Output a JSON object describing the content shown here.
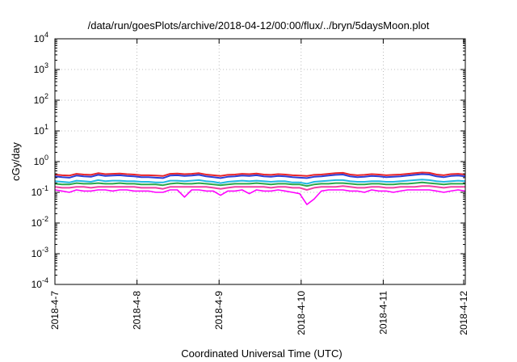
{
  "chart_data": {
    "type": "line",
    "title": "/data/run/goesPlots/archive/2018-04-12/00:00/flux/../bryn/5daysMoon.plot",
    "xlabel": "Coordinated Universal Time (UTC)",
    "ylabel": "cGy/day",
    "yscale": "log",
    "ylim": [
      0.0001,
      10000
    ],
    "xlim": [
      "2018-4-7",
      "2018-4-12"
    ],
    "grid": true,
    "y_ticks": [
      {
        "base": "10",
        "exp": "-4"
      },
      {
        "base": "10",
        "exp": "-3"
      },
      {
        "base": "10",
        "exp": "-2"
      },
      {
        "base": "10",
        "exp": "-1"
      },
      {
        "base": "10",
        "exp": "0"
      },
      {
        "base": "10",
        "exp": "1"
      },
      {
        "base": "10",
        "exp": "2"
      },
      {
        "base": "10",
        "exp": "3"
      },
      {
        "base": "10",
        "exp": "4"
      }
    ],
    "x_ticks": [
      "2018-4-7",
      "2018-4-8",
      "2018-4-9",
      "2018-4-10",
      "2018-4-11",
      "2018-4-12"
    ],
    "series": [
      {
        "color": "#e8242b",
        "values": [
          0.38,
          0.36,
          0.35,
          0.4,
          0.38,
          0.37,
          0.42,
          0.39,
          0.4,
          0.41,
          0.39,
          0.38,
          0.36,
          0.36,
          0.35,
          0.34,
          0.4,
          0.41,
          0.39,
          0.4,
          0.42,
          0.38,
          0.36,
          0.34,
          0.37,
          0.38,
          0.4,
          0.39,
          0.41,
          0.38,
          0.37,
          0.39,
          0.38,
          0.36,
          0.35,
          0.34,
          0.37,
          0.38,
          0.4,
          0.42,
          0.43,
          0.38,
          0.36,
          0.37,
          0.39,
          0.38,
          0.36,
          0.37,
          0.38,
          0.4,
          0.42,
          0.44,
          0.43,
          0.38,
          0.36,
          0.39,
          0.4,
          0.38
        ]
      },
      {
        "color": "#2a3fd8",
        "values": [
          0.33,
          0.31,
          0.3,
          0.35,
          0.33,
          0.32,
          0.37,
          0.34,
          0.35,
          0.36,
          0.34,
          0.33,
          0.31,
          0.31,
          0.3,
          0.29,
          0.35,
          0.36,
          0.34,
          0.35,
          0.37,
          0.33,
          0.31,
          0.29,
          0.32,
          0.33,
          0.35,
          0.34,
          0.36,
          0.33,
          0.32,
          0.34,
          0.33,
          0.31,
          0.3,
          0.29,
          0.32,
          0.33,
          0.35,
          0.37,
          0.38,
          0.33,
          0.31,
          0.32,
          0.34,
          0.33,
          0.31,
          0.32,
          0.33,
          0.35,
          0.37,
          0.39,
          0.38,
          0.33,
          0.31,
          0.34,
          0.35,
          0.33
        ]
      },
      {
        "color": "#23b7e5",
        "values": [
          0.23,
          0.22,
          0.21,
          0.24,
          0.23,
          0.22,
          0.25,
          0.23,
          0.24,
          0.24,
          0.23,
          0.23,
          0.22,
          0.22,
          0.21,
          0.21,
          0.24,
          0.24,
          0.23,
          0.24,
          0.25,
          0.23,
          0.22,
          0.2,
          0.22,
          0.23,
          0.24,
          0.23,
          0.24,
          0.23,
          0.22,
          0.23,
          0.23,
          0.21,
          0.21,
          0.19,
          0.22,
          0.23,
          0.24,
          0.25,
          0.25,
          0.23,
          0.22,
          0.22,
          0.23,
          0.23,
          0.22,
          0.22,
          0.23,
          0.24,
          0.25,
          0.26,
          0.25,
          0.23,
          0.22,
          0.23,
          0.24,
          0.23
        ]
      },
      {
        "color": "#2aa84a",
        "values": [
          0.19,
          0.18,
          0.18,
          0.2,
          0.19,
          0.19,
          0.2,
          0.19,
          0.19,
          0.2,
          0.19,
          0.19,
          0.18,
          0.18,
          0.18,
          0.17,
          0.19,
          0.2,
          0.19,
          0.19,
          0.2,
          0.19,
          0.18,
          0.17,
          0.18,
          0.19,
          0.19,
          0.19,
          0.2,
          0.19,
          0.18,
          0.19,
          0.19,
          0.18,
          0.18,
          0.16,
          0.18,
          0.19,
          0.19,
          0.2,
          0.2,
          0.19,
          0.18,
          0.18,
          0.19,
          0.19,
          0.18,
          0.18,
          0.19,
          0.19,
          0.2,
          0.21,
          0.2,
          0.19,
          0.18,
          0.19,
          0.19,
          0.19
        ]
      },
      {
        "color": "#ef40a6",
        "values": [
          0.15,
          0.14,
          0.14,
          0.15,
          0.15,
          0.14,
          0.15,
          0.15,
          0.15,
          0.15,
          0.15,
          0.15,
          0.14,
          0.14,
          0.14,
          0.13,
          0.15,
          0.15,
          0.15,
          0.15,
          0.15,
          0.15,
          0.14,
          0.13,
          0.14,
          0.15,
          0.15,
          0.15,
          0.15,
          0.15,
          0.14,
          0.15,
          0.15,
          0.14,
          0.14,
          0.12,
          0.14,
          0.15,
          0.15,
          0.15,
          0.16,
          0.15,
          0.14,
          0.14,
          0.15,
          0.15,
          0.14,
          0.14,
          0.15,
          0.15,
          0.15,
          0.16,
          0.16,
          0.15,
          0.14,
          0.15,
          0.15,
          0.15
        ]
      },
      {
        "color": "#ff00ff",
        "values": [
          0.12,
          0.11,
          0.1,
          0.12,
          0.11,
          0.11,
          0.12,
          0.12,
          0.11,
          0.12,
          0.12,
          0.11,
          0.11,
          0.11,
          0.1,
          0.1,
          0.12,
          0.12,
          0.07,
          0.12,
          0.12,
          0.11,
          0.11,
          0.08,
          0.11,
          0.11,
          0.12,
          0.09,
          0.12,
          0.11,
          0.11,
          0.12,
          0.11,
          0.1,
          0.09,
          0.04,
          0.06,
          0.11,
          0.12,
          0.12,
          0.12,
          0.11,
          0.11,
          0.1,
          0.12,
          0.11,
          0.11,
          0.1,
          0.11,
          0.12,
          0.12,
          0.12,
          0.12,
          0.11,
          0.1,
          0.11,
          0.12,
          0.11
        ]
      }
    ]
  }
}
